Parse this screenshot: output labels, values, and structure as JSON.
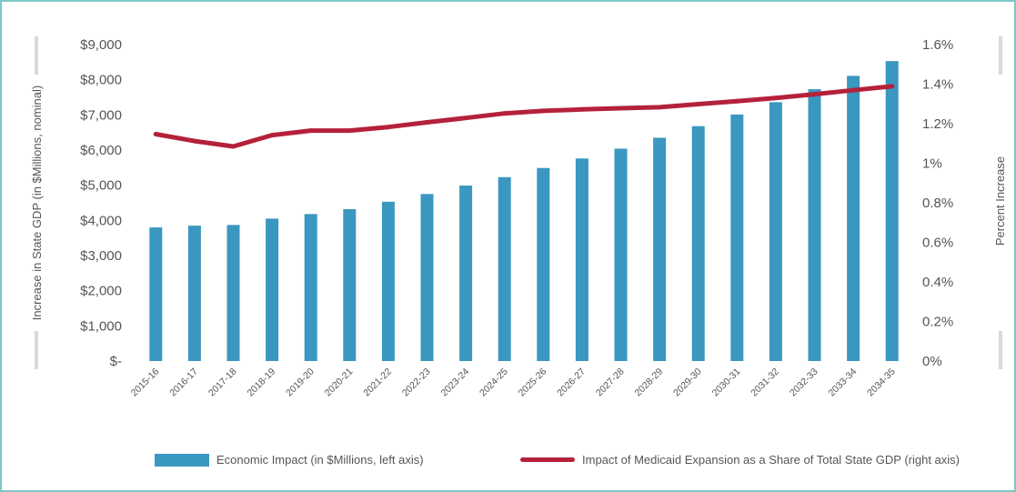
{
  "chart_data": {
    "type": "bar",
    "categories": [
      "2015-16",
      "2016-17",
      "2017-18",
      "2018-19",
      "2019-20",
      "2020-21",
      "2021-22",
      "2022-23",
      "2023-24",
      "2024-25",
      "2025-26",
      "2026-27",
      "2027-28",
      "2028-29",
      "2029-30",
      "2030-31",
      "2031-32",
      "2032-33",
      "2033-34",
      "2034-35"
    ],
    "series": [
      {
        "name": "Economic Impact (in $Millions, left axis)",
        "type": "bar",
        "axis": "left",
        "color": "#3a97bf",
        "values": [
          3800,
          3850,
          3870,
          4050,
          4180,
          4320,
          4530,
          4750,
          4990,
          5230,
          5490,
          5760,
          6040,
          6350,
          6680,
          7010,
          7360,
          7730,
          8110,
          8530
        ]
      },
      {
        "name": "Impact of Medicaid Expansion as a Share of Total State GDP (right axis)",
        "type": "line",
        "axis": "right",
        "color": "#b5213a",
        "values": [
          1.147,
          1.112,
          1.085,
          1.142,
          1.165,
          1.165,
          1.183,
          1.207,
          1.229,
          1.252,
          1.265,
          1.272,
          1.278,
          1.283,
          1.299,
          1.314,
          1.33,
          1.349,
          1.369,
          1.389
        ]
      }
    ],
    "ylabel": "Increase in State GDP (in $Millions, nominal)",
    "ylabel_right": "Percent Increase",
    "ylim": [
      0,
      9000
    ],
    "ylim_right": [
      0,
      1.6
    ],
    "yticks": [
      "$-",
      "$1,000",
      "$2,000",
      "$3,000",
      "$4,000",
      "$5,000",
      "$6,000",
      "$7,000",
      "$8,000",
      "$9,000"
    ],
    "yticks_right": [
      "0%",
      "0.2%",
      "0.4%",
      "0.6%",
      "0.8%",
      "1%",
      "1.2%",
      "1.4%",
      "1.6%"
    ],
    "grid": false,
    "legend_position": "bottom"
  }
}
